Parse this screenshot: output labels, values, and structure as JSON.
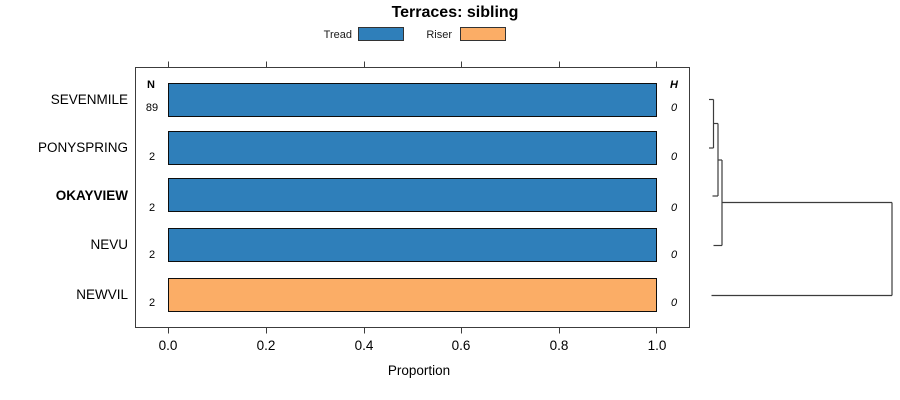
{
  "title": "Terraces: sibling",
  "legend": {
    "items": [
      {
        "label": "Tread",
        "color": "#2F7FBA"
      },
      {
        "label": "Riser",
        "color": "#FBAD66"
      }
    ]
  },
  "columns": {
    "n_header": "N",
    "h_header": "H"
  },
  "rows": [
    {
      "name": "SEVENMILE",
      "n": "89",
      "h": "0",
      "segment": "Tread",
      "proportion": 1.0,
      "color": "#2F7FBA",
      "bold": false
    },
    {
      "name": "PONYSPRING",
      "n": "2",
      "h": "0",
      "segment": "Tread",
      "proportion": 1.0,
      "color": "#2F7FBA",
      "bold": false
    },
    {
      "name": "OKAYVIEW",
      "n": "2",
      "h": "0",
      "segment": "Tread",
      "proportion": 1.0,
      "color": "#2F7FBA",
      "bold": true
    },
    {
      "name": "NEVU",
      "n": "2",
      "h": "0",
      "segment": "Tread",
      "proportion": 1.0,
      "color": "#2F7FBA",
      "bold": false
    },
    {
      "name": "NEWVIL",
      "n": "2",
      "h": "0",
      "segment": "Riser",
      "proportion": 1.0,
      "color": "#FBAD66",
      "bold": false
    }
  ],
  "axis": {
    "label": "Proportion",
    "ticks": [
      "0.0",
      "0.2",
      "0.4",
      "0.6",
      "0.8",
      "1.0"
    ]
  },
  "chart_data": {
    "type": "bar",
    "orientation": "horizontal",
    "title": "Terraces: sibling",
    "xlabel": "Proportion",
    "ylabel": "",
    "xlim": [
      0,
      1
    ],
    "xticks": [
      0.0,
      0.2,
      0.4,
      0.6,
      0.8,
      1.0
    ],
    "grid": false,
    "legend_position": "top",
    "categories": [
      "SEVENMILE",
      "PONYSPRING",
      "OKAYVIEW",
      "NEVU",
      "NEWVIL"
    ],
    "series": [
      {
        "name": "Tread",
        "color": "#2F7FBA",
        "values": [
          1.0,
          1.0,
          1.0,
          1.0,
          0.0
        ]
      },
      {
        "name": "Riser",
        "color": "#FBAD66",
        "values": [
          0.0,
          0.0,
          0.0,
          0.0,
          1.0
        ]
      }
    ],
    "N_values": [
      89,
      2,
      2,
      2,
      2
    ],
    "H_values": [
      0,
      0,
      0,
      0,
      0
    ],
    "dendrogram": {
      "position": "right-margin",
      "merge_order": [
        [
          "SEVENMILE",
          "PONYSPRING"
        ],
        [
          "{SEVENMILE,PONYSPRING}",
          "OKAYVIEW"
        ],
        [
          "{SEVENMILE,PONYSPRING,OKAYVIEW}",
          "NEVU"
        ],
        [
          "{SEVENMILE,PONYSPRING,OKAYVIEW,NEVU}",
          "NEWVIL"
        ]
      ],
      "merge_heights": [
        0,
        0,
        0,
        0
      ]
    }
  }
}
